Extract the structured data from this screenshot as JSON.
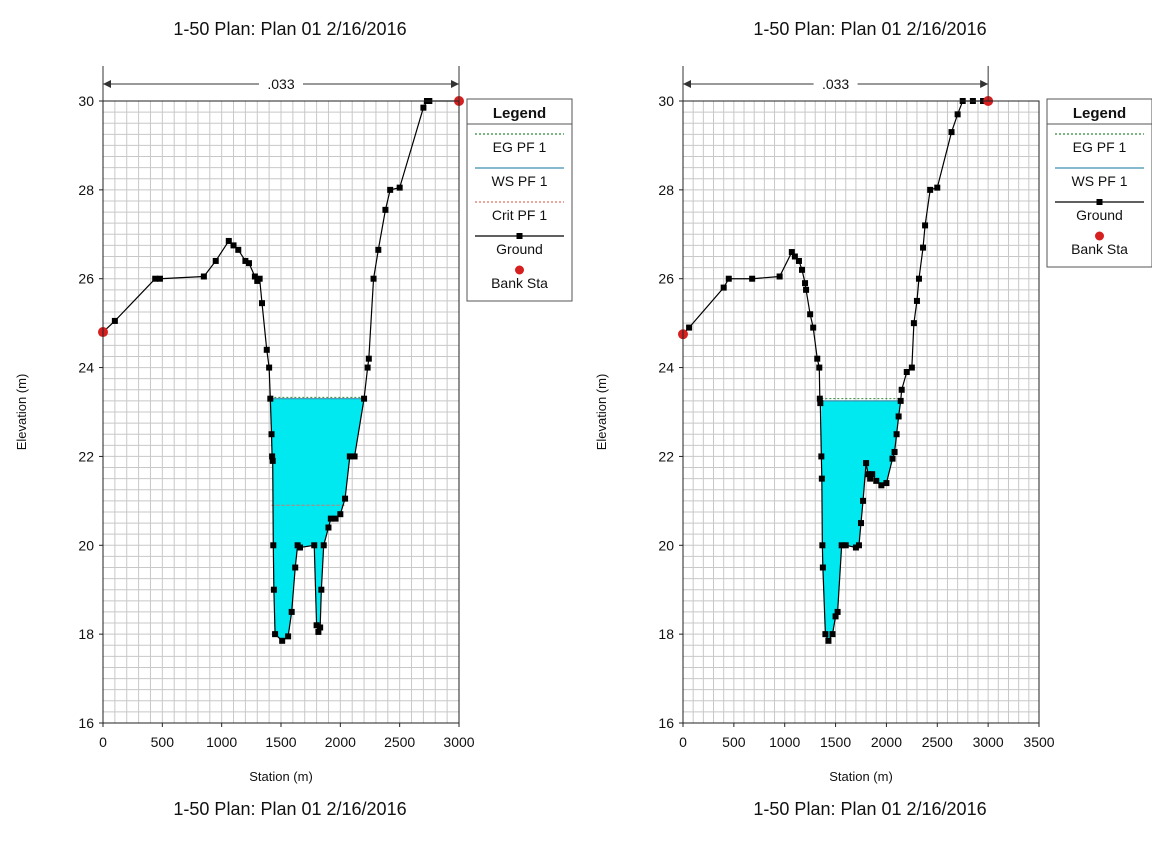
{
  "chart_data": [
    {
      "type": "line",
      "title": "1-50      Plan: Plan 01      2/16/2016",
      "footer": "1-50      Plan: Plan 01      2/16/2016",
      "xlabel": "Station (m)",
      "ylabel": "Elevation (m)",
      "xlim": [
        0,
        3000
      ],
      "ylim": [
        16,
        30
      ],
      "xticks": [
        0,
        500,
        1000,
        1500,
        2000,
        2500,
        3000
      ],
      "yticks": [
        16,
        18,
        20,
        22,
        24,
        26,
        28,
        30
      ],
      "grid": true,
      "manning_label": ".033",
      "manning_range": [
        0,
        3000
      ],
      "legend": {
        "title": "Legend",
        "placement": "right",
        "entries": [
          {
            "name": "EG PF 1",
            "style": "dashed",
            "color": "#2e8b3a"
          },
          {
            "name": "WS PF 1",
            "style": "solid",
            "color": "#3a8fb0"
          },
          {
            "name": "Crit PF 1",
            "style": "dashed",
            "color": "#e07060"
          },
          {
            "name": "Ground",
            "style": "solid-square",
            "color": "#000000"
          },
          {
            "name": "Bank Sta",
            "style": "dot",
            "color": "#d62020"
          }
        ]
      },
      "water_surface": {
        "elevation": 23.3,
        "x_left": 1410,
        "x_right": 2200,
        "fill": "#00e8f0"
      },
      "energy_grade": {
        "elevation": 23.33
      },
      "critical_ws": {
        "elevation": 20.9,
        "x_left": 1420,
        "x_right": 2050
      },
      "ground": [
        [
          0,
          24.8
        ],
        [
          100,
          25.05
        ],
        [
          440,
          26.0
        ],
        [
          480,
          26.0
        ],
        [
          850,
          26.05
        ],
        [
          950,
          26.4
        ],
        [
          1060,
          26.85
        ],
        [
          1100,
          26.75
        ],
        [
          1140,
          26.65
        ],
        [
          1200,
          26.4
        ],
        [
          1230,
          26.35
        ],
        [
          1280,
          26.05
        ],
        [
          1300,
          25.95
        ],
        [
          1320,
          26.0
        ],
        [
          1340,
          25.45
        ],
        [
          1380,
          24.4
        ],
        [
          1400,
          24.0
        ],
        [
          1410,
          23.3
        ],
        [
          1420,
          22.5
        ],
        [
          1425,
          22.0
        ],
        [
          1430,
          21.9
        ],
        [
          1435,
          20.0
        ],
        [
          1440,
          19.0
        ],
        [
          1450,
          18.0
        ],
        [
          1510,
          17.85
        ],
        [
          1560,
          17.95
        ],
        [
          1590,
          18.5
        ],
        [
          1620,
          19.5
        ],
        [
          1640,
          20.0
        ],
        [
          1660,
          19.95
        ],
        [
          1780,
          20.0
        ],
        [
          1800,
          18.2
        ],
        [
          1815,
          18.05
        ],
        [
          1830,
          18.15
        ],
        [
          1840,
          19.0
        ],
        [
          1860,
          20.0
        ],
        [
          1900,
          20.4
        ],
        [
          1920,
          20.6
        ],
        [
          1960,
          20.6
        ],
        [
          2000,
          20.7
        ],
        [
          2040,
          21.05
        ],
        [
          2080,
          22.0
        ],
        [
          2120,
          22.0
        ],
        [
          2200,
          23.3
        ],
        [
          2230,
          24.0
        ],
        [
          2240,
          24.2
        ],
        [
          2280,
          26.0
        ],
        [
          2320,
          26.65
        ],
        [
          2380,
          27.55
        ],
        [
          2420,
          28.0
        ],
        [
          2500,
          28.05
        ],
        [
          2700,
          29.85
        ],
        [
          2730,
          30.0
        ],
        [
          2750,
          30.0
        ],
        [
          3000,
          30.0
        ]
      ],
      "bank_stations": [
        [
          0,
          24.8
        ],
        [
          3000,
          30.0
        ]
      ]
    },
    {
      "type": "line",
      "title": "1-50      Plan: Plan 01      2/16/2016",
      "footer": "1-50      Plan: Plan 01      2/16/2016",
      "xlabel": "Station (m)",
      "ylabel": "Elevation (m)",
      "xlim": [
        0,
        3500
      ],
      "ylim": [
        16,
        30
      ],
      "xticks": [
        0,
        500,
        1000,
        1500,
        2000,
        2500,
        3000,
        3500
      ],
      "yticks": [
        16,
        18,
        20,
        22,
        24,
        26,
        28,
        30
      ],
      "grid": true,
      "manning_label": ".033",
      "manning_range": [
        0,
        3000
      ],
      "legend": {
        "title": "Legend",
        "placement": "right",
        "entries": [
          {
            "name": "EG PF 1",
            "style": "dashed",
            "color": "#2e8b3a"
          },
          {
            "name": "WS PF 1",
            "style": "solid",
            "color": "#3a8fb0"
          },
          {
            "name": "Ground",
            "style": "solid-square",
            "color": "#000000"
          },
          {
            "name": "Bank Sta",
            "style": "dot",
            "color": "#d62020"
          }
        ]
      },
      "water_surface": {
        "elevation": 23.25,
        "x_left": 1360,
        "x_right": 2140,
        "fill": "#00e8f0"
      },
      "energy_grade": {
        "elevation": 23.3
      },
      "ground": [
        [
          0,
          24.75
        ],
        [
          60,
          24.9
        ],
        [
          400,
          25.8
        ],
        [
          450,
          26.0
        ],
        [
          680,
          26.0
        ],
        [
          950,
          26.05
        ],
        [
          1070,
          26.6
        ],
        [
          1100,
          26.5
        ],
        [
          1140,
          26.4
        ],
        [
          1170,
          26.2
        ],
        [
          1200,
          25.9
        ],
        [
          1210,
          25.75
        ],
        [
          1250,
          25.2
        ],
        [
          1280,
          24.9
        ],
        [
          1320,
          24.2
        ],
        [
          1340,
          24.0
        ],
        [
          1345,
          23.3
        ],
        [
          1350,
          23.2
        ],
        [
          1360,
          22.0
        ],
        [
          1365,
          21.5
        ],
        [
          1370,
          20.0
        ],
        [
          1375,
          19.5
        ],
        [
          1400,
          18.0
        ],
        [
          1430,
          17.85
        ],
        [
          1470,
          18.0
        ],
        [
          1500,
          18.4
        ],
        [
          1520,
          18.5
        ],
        [
          1560,
          20.0
        ],
        [
          1600,
          20.0
        ],
        [
          1700,
          19.95
        ],
        [
          1730,
          20.0
        ],
        [
          1750,
          20.5
        ],
        [
          1770,
          21.0
        ],
        [
          1800,
          21.85
        ],
        [
          1820,
          21.6
        ],
        [
          1840,
          21.5
        ],
        [
          1860,
          21.6
        ],
        [
          1900,
          21.45
        ],
        [
          1950,
          21.35
        ],
        [
          2000,
          21.4
        ],
        [
          2060,
          21.95
        ],
        [
          2080,
          22.1
        ],
        [
          2100,
          22.5
        ],
        [
          2120,
          22.9
        ],
        [
          2140,
          23.25
        ],
        [
          2150,
          23.5
        ],
        [
          2200,
          23.9
        ],
        [
          2250,
          24.0
        ],
        [
          2270,
          25.0
        ],
        [
          2300,
          25.5
        ],
        [
          2320,
          26.0
        ],
        [
          2360,
          26.7
        ],
        [
          2380,
          27.2
        ],
        [
          2430,
          28.0
        ],
        [
          2500,
          28.05
        ],
        [
          2640,
          29.3
        ],
        [
          2700,
          29.7
        ],
        [
          2750,
          30.0
        ],
        [
          2850,
          30.0
        ],
        [
          2950,
          30.0
        ],
        [
          3000,
          30.0
        ]
      ],
      "bank_stations": [
        [
          0,
          24.75
        ],
        [
          3000,
          30.0
        ]
      ]
    }
  ]
}
